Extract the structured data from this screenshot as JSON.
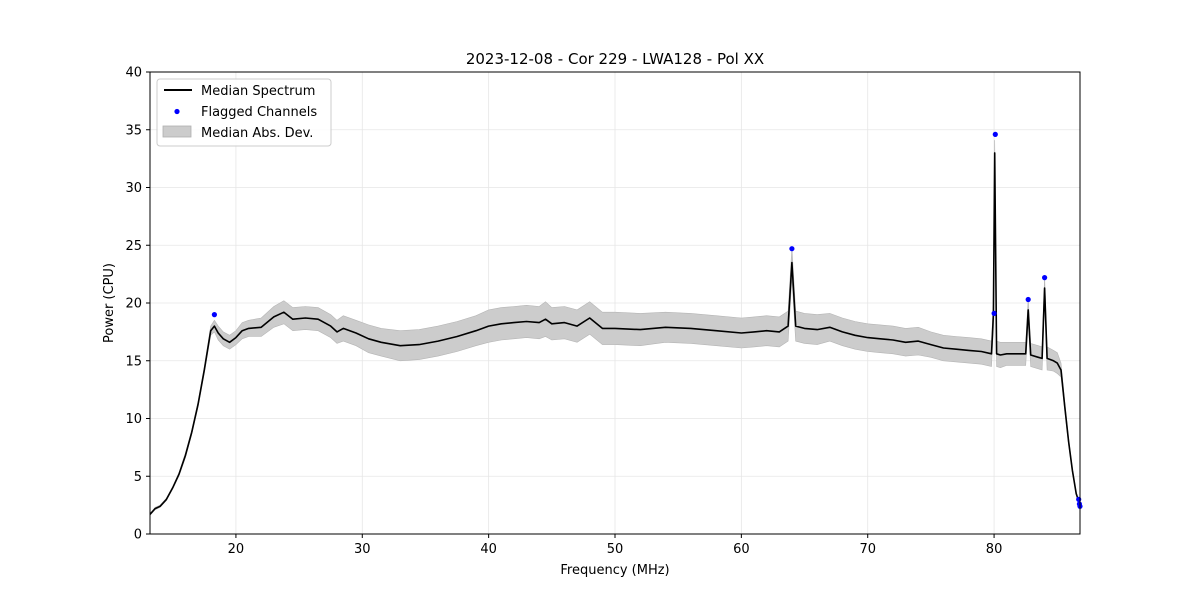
{
  "chart_data": {
    "type": "line",
    "title": "2023-12-08 - Cor 229 - LWA128 - Pol XX",
    "xlabel": "Frequency (MHz)",
    "ylabel": "Power (CPU)",
    "xlim": [
      13.2,
      86.8
    ],
    "ylim": [
      0,
      40
    ],
    "xticks": [
      20,
      30,
      40,
      50,
      60,
      70,
      80
    ],
    "yticks": [
      0,
      5,
      10,
      15,
      20,
      25,
      30,
      35,
      40
    ],
    "grid": true,
    "legend_position": "upper-left",
    "series": [
      {
        "name": "Median Spectrum",
        "kind": "line",
        "color": "#000000",
        "x": [
          13.2,
          13.6,
          14.0,
          14.5,
          15.0,
          15.5,
          16.0,
          16.5,
          17.0,
          17.5,
          18.0,
          18.3,
          18.6,
          19.0,
          19.5,
          20.0,
          20.5,
          21.0,
          22.0,
          23.0,
          23.8,
          24.5,
          25.5,
          26.5,
          27.5,
          28.0,
          28.5,
          29.5,
          30.5,
          31.5,
          33.0,
          34.5,
          36.0,
          37.5,
          39.0,
          40.0,
          41.0,
          42.0,
          43.0,
          44.0,
          44.5,
          45.0,
          46.0,
          47.0,
          48.0,
          49.0,
          50.0,
          52.0,
          54.0,
          56.0,
          58.0,
          60.0,
          61.0,
          62.0,
          63.0,
          63.7,
          64.0,
          64.3,
          65.0,
          66.0,
          67.0,
          68.0,
          69.0,
          70.0,
          71.0,
          72.0,
          73.0,
          74.0,
          75.0,
          76.0,
          77.0,
          78.0,
          79.0,
          79.8,
          79.95,
          80.05,
          80.2,
          80.5,
          81.0,
          82.0,
          82.5,
          82.7,
          82.9,
          83.5,
          83.8,
          84.0,
          84.2,
          84.7,
          85.0,
          85.3,
          85.6,
          85.9,
          86.2,
          86.5,
          86.8
        ],
        "y": [
          1.7,
          2.2,
          2.4,
          3.0,
          4.0,
          5.2,
          6.8,
          8.8,
          11.2,
          14.2,
          17.6,
          18.0,
          17.4,
          16.9,
          16.6,
          17.0,
          17.6,
          17.8,
          17.9,
          18.8,
          19.2,
          18.6,
          18.7,
          18.6,
          18.0,
          17.5,
          17.8,
          17.4,
          16.9,
          16.6,
          16.3,
          16.4,
          16.7,
          17.1,
          17.6,
          18.0,
          18.2,
          18.3,
          18.4,
          18.3,
          18.6,
          18.2,
          18.3,
          18.0,
          18.7,
          17.8,
          17.8,
          17.7,
          17.9,
          17.8,
          17.6,
          17.4,
          17.5,
          17.6,
          17.5,
          18.0,
          23.5,
          18.0,
          17.8,
          17.7,
          17.9,
          17.5,
          17.2,
          17.0,
          16.9,
          16.8,
          16.6,
          16.7,
          16.4,
          16.1,
          16.0,
          15.9,
          15.8,
          15.6,
          19.0,
          33.0,
          15.6,
          15.5,
          15.6,
          15.6,
          15.6,
          19.4,
          15.5,
          15.3,
          15.2,
          21.3,
          15.2,
          15.0,
          14.8,
          14.2,
          11.0,
          8.0,
          5.5,
          3.5,
          2.5
        ],
        "mad": [
          0.1,
          0.1,
          0.1,
          0.1,
          0.1,
          0.15,
          0.2,
          0.2,
          0.25,
          0.3,
          0.4,
          0.5,
          0.6,
          0.6,
          0.6,
          0.6,
          0.7,
          0.7,
          0.8,
          0.9,
          1.0,
          1.0,
          1.0,
          1.0,
          1.0,
          1.0,
          1.1,
          1.1,
          1.2,
          1.2,
          1.3,
          1.3,
          1.3,
          1.3,
          1.3,
          1.4,
          1.4,
          1.4,
          1.4,
          1.4,
          1.5,
          1.4,
          1.4,
          1.4,
          1.4,
          1.4,
          1.4,
          1.4,
          1.3,
          1.3,
          1.3,
          1.3,
          1.3,
          1.3,
          1.3,
          1.3,
          1.3,
          1.3,
          1.3,
          1.3,
          1.2,
          1.2,
          1.2,
          1.2,
          1.2,
          1.2,
          1.2,
          1.2,
          1.1,
          1.1,
          1.1,
          1.1,
          1.1,
          1.1,
          1.1,
          1.1,
          1.1,
          1.1,
          1.0,
          1.0,
          1.0,
          1.0,
          1.0,
          1.0,
          1.0,
          1.0,
          1.0,
          0.9,
          0.9,
          0.6,
          0.4,
          0.3,
          0.2,
          0.1,
          0.1
        ]
      },
      {
        "name": "Flagged Channels",
        "kind": "scatter",
        "color": "#0000ff",
        "x": [
          18.3,
          64.0,
          80.0,
          80.1,
          82.7,
          84.0,
          86.7,
          86.75,
          86.8
        ],
        "y": [
          19.0,
          24.7,
          19.1,
          34.6,
          20.3,
          22.2,
          3.0,
          2.6,
          2.4
        ]
      },
      {
        "name": "Median Abs. Dev.",
        "kind": "band",
        "color": "#cccccc"
      }
    ]
  }
}
